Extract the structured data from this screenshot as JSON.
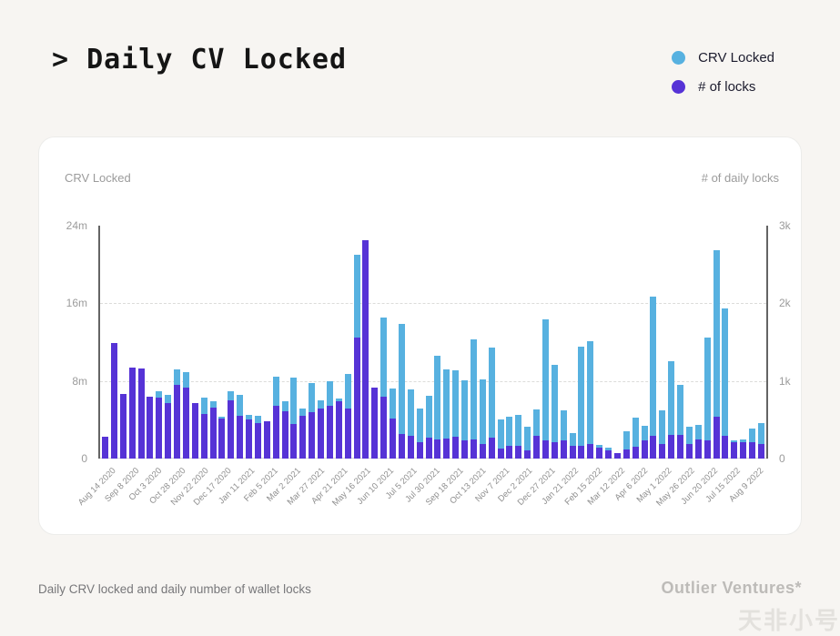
{
  "page": {
    "title": "> Daily CV Locked",
    "caption": "Daily CRV locked and daily number of wallet locks",
    "brand": "Outlier Ventures*",
    "watermark": "天非小号"
  },
  "colors": {
    "crv_locked": "#57b1e0",
    "num_locks": "#5633d6",
    "background": "#f7f5f2",
    "card": "#ffffff",
    "axis_text": "#9b9b9b"
  },
  "legend": {
    "items": [
      {
        "label": "CRV Locked",
        "color": "#57b1e0"
      },
      {
        "label": "# of locks",
        "color": "#5633d6"
      }
    ]
  },
  "chart_data": {
    "type": "bar",
    "title": "Daily CV Locked",
    "left_axis": {
      "title": "CRV Locked",
      "unit": "CRV (millions)",
      "max": 24000000,
      "ticks": [
        {
          "label": "24m",
          "frac": 0
        },
        {
          "label": "16m",
          "frac": 0.3333
        },
        {
          "label": "8m",
          "frac": 0.6667
        },
        {
          "label": "0",
          "frac": 1
        }
      ]
    },
    "right_axis": {
      "title": "# of daily locks",
      "unit": "locks (thousands)",
      "max": 3000,
      "ticks": [
        {
          "label": "3k",
          "frac": 0
        },
        {
          "label": "2k",
          "frac": 0.3333
        },
        {
          "label": "1k",
          "frac": 0.6667
        },
        {
          "label": "0",
          "frac": 1
        }
      ]
    },
    "grid": "dashed horizontal at 8m and 16m",
    "legend_position": "top-right outside card",
    "x_tick_labels": [
      "Aug 14 2020",
      "Sep 8 2020",
      "Oct 3 2020",
      "Oct 28 2020",
      "Nov 22 2020",
      "Dec 17 2020",
      "Jan 11 2021",
      "Feb 5 2021",
      "Mar 2 2021",
      "Mar 27 2021",
      "Apr 21 2021",
      "May 16 2021",
      "Jun 10 2021",
      "Jul 5 2021",
      "Jul 30 2021",
      "Sep 18 2021",
      "Oct 13 2021",
      "Nov 7 2021",
      "Dec 2 2021",
      "Dec 27 2021",
      "Jan 21 2022",
      "Feb 15 2022",
      "Mar 12 2022",
      "Apr 6 2022",
      "May 1 2022",
      "May 26 2022",
      "Jun 20 2022",
      "Jul 15 2022",
      "Aug 9 2022"
    ],
    "series": [
      {
        "name": "CRV Locked",
        "axis": "left",
        "unit": "millions of CRV",
        "color": "#57b1e0",
        "values": [
          1.6,
          4.0,
          4.5,
          6.0,
          6.0,
          5.0,
          6.9,
          6.6,
          9.2,
          8.9,
          5.6,
          6.3,
          5.9,
          4.3,
          6.9,
          6.6,
          4.5,
          4.4,
          3.8,
          8.4,
          5.9,
          8.3,
          5.2,
          7.8,
          6.0,
          8.0,
          6.2,
          8.7,
          21.0,
          12.0,
          6.0,
          14.5,
          7.2,
          13.9,
          7.1,
          5.2,
          6.5,
          10.6,
          9.2,
          9.1,
          8.1,
          12.3,
          8.2,
          11.4,
          4.0,
          4.3,
          4.5,
          3.3,
          5.1,
          14.3,
          9.7,
          5.0,
          2.6,
          11.5,
          12.1,
          1.4,
          1.1,
          0.6,
          2.8,
          4.2,
          3.4,
          16.7,
          5.0,
          10.0,
          7.6,
          3.3,
          3.5,
          12.5,
          21.5,
          15.5,
          1.9,
          2.0,
          3.1,
          3.7
        ]
      },
      {
        "name": "# of locks",
        "axis": "right",
        "unit": "thousands of locks",
        "color": "#5633d6",
        "values": [
          0.28,
          1.49,
          0.83,
          1.17,
          1.16,
          0.8,
          0.78,
          0.72,
          0.95,
          0.92,
          0.72,
          0.58,
          0.66,
          0.52,
          0.75,
          0.55,
          0.5,
          0.46,
          0.48,
          0.68,
          0.61,
          0.45,
          0.55,
          0.6,
          0.65,
          0.68,
          0.74,
          0.64,
          1.56,
          2.81,
          0.91,
          0.8,
          0.51,
          0.32,
          0.29,
          0.21,
          0.27,
          0.25,
          0.26,
          0.28,
          0.23,
          0.25,
          0.19,
          0.27,
          0.13,
          0.17,
          0.17,
          0.11,
          0.29,
          0.23,
          0.21,
          0.23,
          0.16,
          0.17,
          0.19,
          0.14,
          0.11,
          0.07,
          0.12,
          0.15,
          0.23,
          0.29,
          0.19,
          0.31,
          0.31,
          0.19,
          0.25,
          0.23,
          0.54,
          0.29,
          0.21,
          0.21,
          0.21,
          0.19
        ]
      }
    ]
  }
}
